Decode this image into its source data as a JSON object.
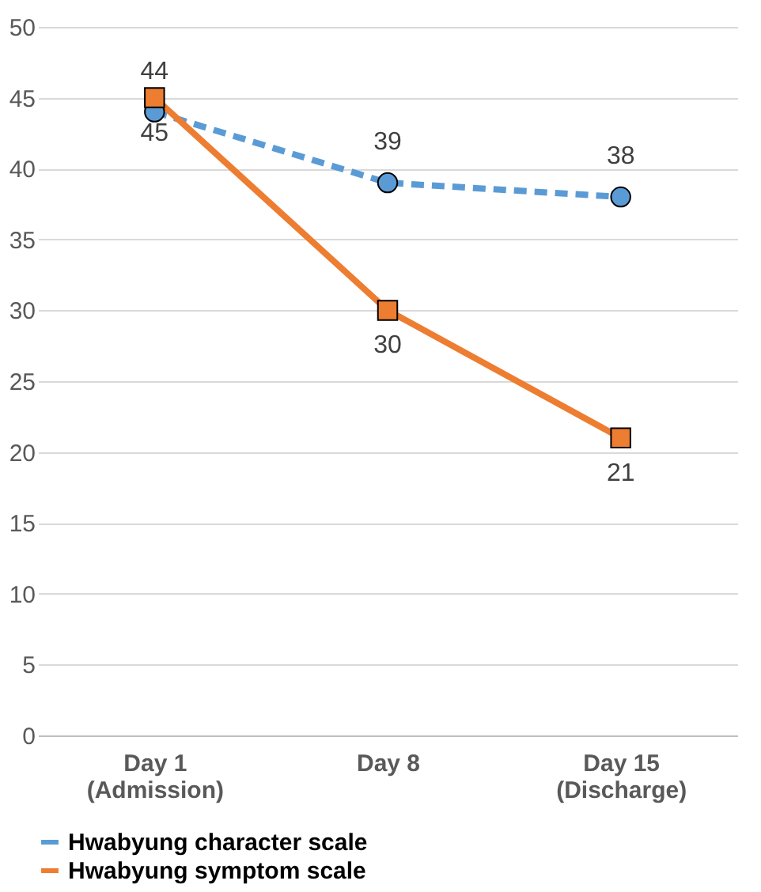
{
  "chart_data": {
    "type": "line",
    "categories": [
      "Day 1\n(Admission)",
      "Day 8",
      "Day 15\n(Discharge)"
    ],
    "series": [
      {
        "name": "Hwabyung character scale",
        "color": "#5b9bd5",
        "values": [
          44,
          39,
          38
        ],
        "value_labels": [
          "44",
          "39",
          "38"
        ],
        "line_style": "dashed",
        "marker": "circle"
      },
      {
        "name": "Hwabyung symptom scale",
        "color": "#ed7d31",
        "values": [
          45,
          30,
          21
        ],
        "value_labels": [
          "45",
          "30",
          "21"
        ],
        "line_style": "solid",
        "marker": "square"
      }
    ],
    "ylim": [
      0,
      50
    ],
    "yticks": [
      0,
      5,
      10,
      15,
      20,
      25,
      30,
      35,
      40,
      45,
      50
    ],
    "grid": "y",
    "legend": "bottom"
  }
}
